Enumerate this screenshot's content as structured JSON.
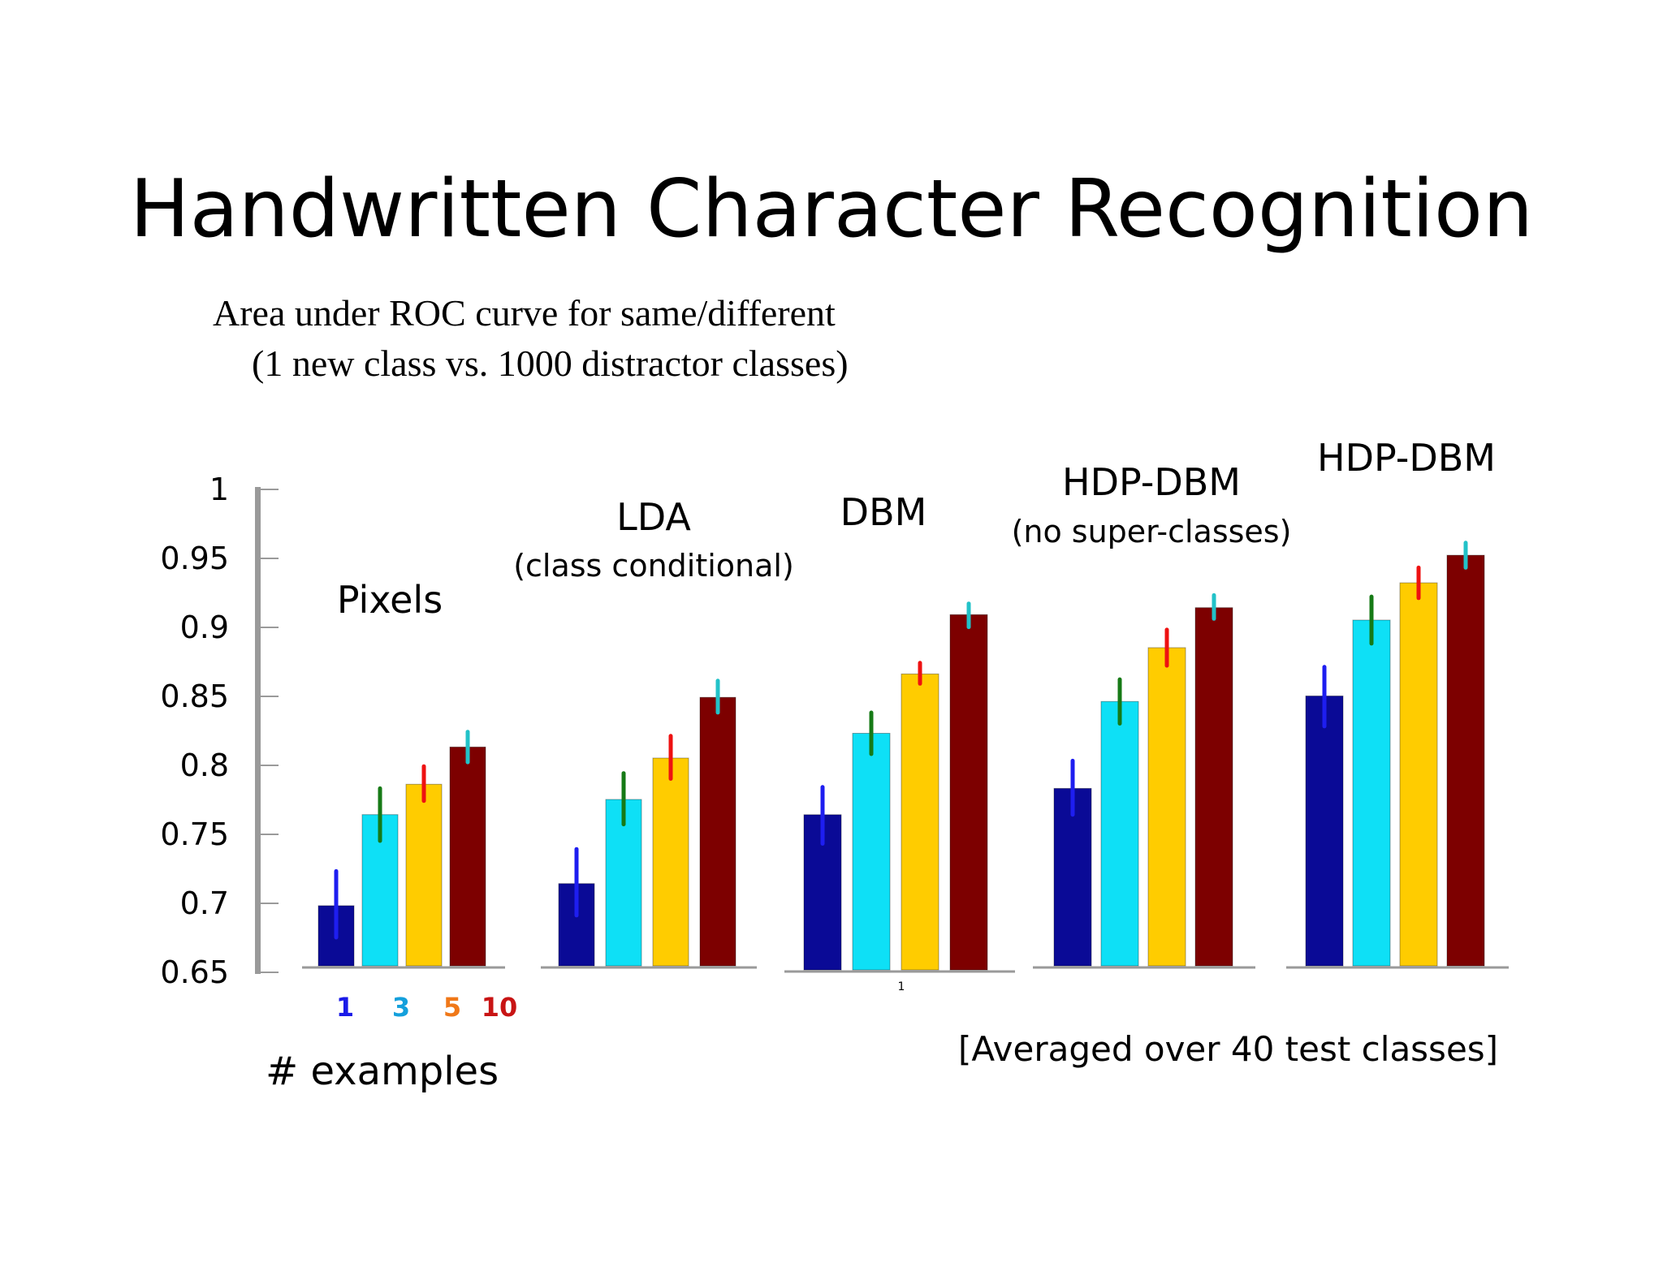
{
  "title": "Handwritten Character Recognition",
  "subtitle": {
    "line1": "Area under ROC curve for same/different",
    "line2": "(1 new class vs. 1000 distractor classes)"
  },
  "colors": {
    "ex_1": "#0a0a96",
    "ex_3": "#0ee0f6",
    "ex_5": "#ffcc00",
    "ex_10": "#7d0000",
    "err_1": "#1e1ef0",
    "err_3": "#167a16",
    "err_5": "#ee1111",
    "err_10": "#22c2c8",
    "legend_1": "#1a1ae8",
    "legend_3": "#14a0dc",
    "legend_5": "#f07818",
    "legend_10": "#c81414",
    "axis": "#9a9a9a"
  },
  "legend": {
    "labels": [
      "1",
      "3",
      "5",
      "10"
    ],
    "caption": "# examples"
  },
  "footnote": "[Averaged over 40 test classes]",
  "stray_tick": "1",
  "chart_data": {
    "type": "bar",
    "ylim": [
      0.65,
      1.0
    ],
    "yticks": [
      "1",
      "0.95",
      "0.9",
      "0.85",
      "0.8",
      "0.75",
      "0.7",
      "0.65"
    ],
    "ytick_values": [
      1.0,
      0.95,
      0.9,
      0.85,
      0.8,
      0.75,
      0.7,
      0.65
    ],
    "series_labels": [
      "1",
      "3",
      "5",
      "10"
    ],
    "groups": [
      {
        "label": "Pixels",
        "sublabel": "",
        "values": [
          0.703,
          0.769,
          0.791,
          0.818
        ],
        "err": [
          [
            0.68,
            0.728
          ],
          [
            0.75,
            0.788
          ],
          [
            0.779,
            0.804
          ],
          [
            0.807,
            0.829
          ]
        ]
      },
      {
        "label": "LDA",
        "sublabel": "(class conditional)",
        "values": [
          0.719,
          0.78,
          0.81,
          0.854
        ],
        "err": [
          [
            0.696,
            0.744
          ],
          [
            0.762,
            0.799
          ],
          [
            0.795,
            0.826
          ],
          [
            0.843,
            0.866
          ]
        ]
      },
      {
        "label": "DBM",
        "sublabel": "",
        "values": [
          0.766,
          0.825,
          0.868,
          0.911
        ],
        "err": [
          [
            0.745,
            0.786
          ],
          [
            0.81,
            0.84
          ],
          [
            0.861,
            0.876
          ],
          [
            0.902,
            0.919
          ]
        ]
      },
      {
        "label": "HDP-DBM",
        "sublabel": "(no super-classes)",
        "values": [
          0.788,
          0.851,
          0.89,
          0.919
        ],
        "err": [
          [
            0.769,
            0.808
          ],
          [
            0.835,
            0.867
          ],
          [
            0.877,
            0.903
          ],
          [
            0.911,
            0.928
          ]
        ]
      },
      {
        "label": "HDP-DBM",
        "sublabel": "",
        "values": [
          0.855,
          0.91,
          0.937,
          0.957
        ],
        "err": [
          [
            0.833,
            0.876
          ],
          [
            0.893,
            0.927
          ],
          [
            0.926,
            0.948
          ],
          [
            0.948,
            0.966
          ]
        ]
      }
    ]
  }
}
